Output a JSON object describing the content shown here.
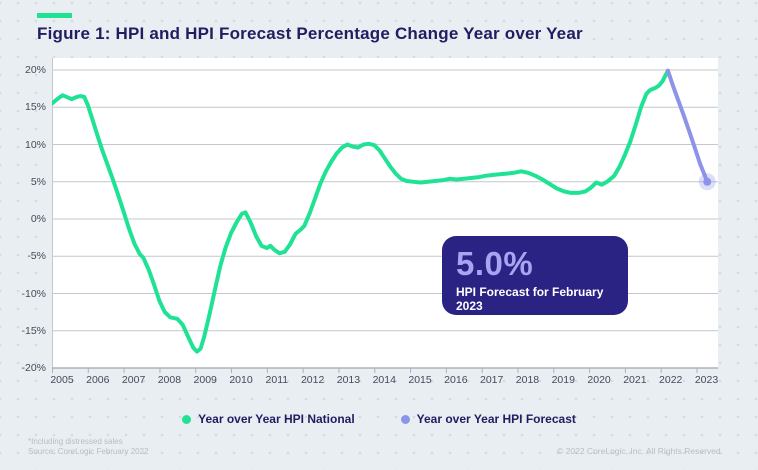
{
  "header": {
    "title": "Figure 1: HPI and HPI Forecast Percentage Change Year over Year"
  },
  "callout": {
    "value": "5.0%",
    "label": "HPI Forecast for February 2023"
  },
  "legend": {
    "items": [
      {
        "label": "Year over Year HPI National",
        "color": "#1fe294"
      },
      {
        "label": "Year over Year HPI Forecast",
        "color": "#8d93e9"
      }
    ]
  },
  "footer": {
    "note1": "*Including distressed sales",
    "note2": "Source: CoreLogic February 2022",
    "copyright": "© 2022 CoreLogic, Inc. All Rights Reserved."
  },
  "colors": {
    "background": "#e9eef2",
    "dot_grid": "#d4dade",
    "title_text": "#221c61",
    "plot_bg": "#ffffff",
    "gridline": "#c4c7cb",
    "axis_line": "#aeb2b8",
    "axis_text": "#464a5c",
    "hpi_green": "#1fe294",
    "forecast_purple": "#8d93e9",
    "callout_bg": "#2b2384",
    "callout_value": "#a9a4f2",
    "callout_text": "#ffffff",
    "footer_text": "#b6bdc4"
  },
  "chart_data": {
    "type": "line",
    "title": "Figure 1: HPI and HPI Forecast Percentage Change Year over Year",
    "xlabel": "",
    "ylabel": "",
    "xlim": [
      2005,
      2023.6
    ],
    "ylim": [
      -20,
      20
    ],
    "grid": "horizontal",
    "legend_position": "bottom",
    "y_tick_values": [
      20,
      15,
      10,
      5,
      0,
      -5,
      -10,
      -15,
      -20
    ],
    "y_tick_labels": [
      "20%",
      "15%",
      "10%",
      "5%",
      "0%",
      "-5%",
      "-10%",
      "-15%",
      "-20%"
    ],
    "x_tick_labels": [
      "2005",
      "2006",
      "2007",
      "2008",
      "2009",
      "2010",
      "2011",
      "2012",
      "2013",
      "2014",
      "2015",
      "2016",
      "2017",
      "2018",
      "2019",
      "2020",
      "2021",
      "2022",
      "2023"
    ],
    "annotation": {
      "value": "5.0%",
      "label": "HPI Forecast for February 2023"
    },
    "series": [
      {
        "name": "Year over Year HPI National",
        "color": "#1fe294",
        "points": [
          [
            2005.0,
            15.5
          ],
          [
            2005.1,
            15.9
          ],
          [
            2005.2,
            16.3
          ],
          [
            2005.3,
            16.6
          ],
          [
            2005.4,
            16.4
          ],
          [
            2005.55,
            16.1
          ],
          [
            2005.7,
            16.4
          ],
          [
            2005.8,
            16.5
          ],
          [
            2005.9,
            16.4
          ],
          [
            2006.0,
            15.3
          ],
          [
            2006.1,
            13.8
          ],
          [
            2006.25,
            11.5
          ],
          [
            2006.4,
            9.3
          ],
          [
            2006.55,
            7.3
          ],
          [
            2006.7,
            5.3
          ],
          [
            2006.85,
            3.2
          ],
          [
            2007.0,
            1.0
          ],
          [
            2007.15,
            -1.3
          ],
          [
            2007.3,
            -3.3
          ],
          [
            2007.45,
            -4.7
          ],
          [
            2007.55,
            -5.2
          ],
          [
            2007.7,
            -6.8
          ],
          [
            2007.85,
            -8.8
          ],
          [
            2008.0,
            -11.0
          ],
          [
            2008.15,
            -12.5
          ],
          [
            2008.3,
            -13.2
          ],
          [
            2008.5,
            -13.4
          ],
          [
            2008.65,
            -14.2
          ],
          [
            2008.8,
            -15.8
          ],
          [
            2008.95,
            -17.3
          ],
          [
            2009.05,
            -17.8
          ],
          [
            2009.15,
            -17.4
          ],
          [
            2009.25,
            -15.8
          ],
          [
            2009.4,
            -12.8
          ],
          [
            2009.55,
            -9.5
          ],
          [
            2009.7,
            -6.3
          ],
          [
            2009.85,
            -3.8
          ],
          [
            2010.0,
            -1.9
          ],
          [
            2010.15,
            -0.5
          ],
          [
            2010.3,
            0.7
          ],
          [
            2010.4,
            0.9
          ],
          [
            2010.55,
            -0.5
          ],
          [
            2010.7,
            -2.3
          ],
          [
            2010.85,
            -3.6
          ],
          [
            2011.0,
            -3.9
          ],
          [
            2011.1,
            -3.6
          ],
          [
            2011.2,
            -4.1
          ],
          [
            2011.35,
            -4.6
          ],
          [
            2011.5,
            -4.4
          ],
          [
            2011.65,
            -3.4
          ],
          [
            2011.8,
            -2.0
          ],
          [
            2011.95,
            -1.4
          ],
          [
            2012.05,
            -0.9
          ],
          [
            2012.2,
            0.8
          ],
          [
            2012.35,
            2.8
          ],
          [
            2012.5,
            4.8
          ],
          [
            2012.65,
            6.4
          ],
          [
            2012.8,
            7.7
          ],
          [
            2012.95,
            8.8
          ],
          [
            2013.1,
            9.6
          ],
          [
            2013.25,
            10.0
          ],
          [
            2013.4,
            9.7
          ],
          [
            2013.55,
            9.6
          ],
          [
            2013.7,
            10.0
          ],
          [
            2013.85,
            10.1
          ],
          [
            2014.0,
            9.9
          ],
          [
            2014.15,
            9.2
          ],
          [
            2014.3,
            8.1
          ],
          [
            2014.45,
            7.0
          ],
          [
            2014.6,
            6.1
          ],
          [
            2014.75,
            5.4
          ],
          [
            2014.9,
            5.1
          ],
          [
            2015.1,
            5.0
          ],
          [
            2015.3,
            4.9
          ],
          [
            2015.5,
            5.0
          ],
          [
            2015.7,
            5.1
          ],
          [
            2015.9,
            5.2
          ],
          [
            2016.1,
            5.4
          ],
          [
            2016.3,
            5.3
          ],
          [
            2016.5,
            5.4
          ],
          [
            2016.7,
            5.5
          ],
          [
            2016.9,
            5.6
          ],
          [
            2017.1,
            5.8
          ],
          [
            2017.3,
            5.9
          ],
          [
            2017.5,
            6.0
          ],
          [
            2017.7,
            6.1
          ],
          [
            2017.9,
            6.2
          ],
          [
            2018.1,
            6.4
          ],
          [
            2018.3,
            6.2
          ],
          [
            2018.5,
            5.8
          ],
          [
            2018.7,
            5.3
          ],
          [
            2018.9,
            4.7
          ],
          [
            2019.1,
            4.1
          ],
          [
            2019.3,
            3.7
          ],
          [
            2019.5,
            3.5
          ],
          [
            2019.7,
            3.5
          ],
          [
            2019.9,
            3.7
          ],
          [
            2020.05,
            4.2
          ],
          [
            2020.2,
            4.9
          ],
          [
            2020.35,
            4.6
          ],
          [
            2020.5,
            5.0
          ],
          [
            2020.7,
            5.8
          ],
          [
            2020.85,
            7.0
          ],
          [
            2021.0,
            8.6
          ],
          [
            2021.15,
            10.4
          ],
          [
            2021.3,
            12.6
          ],
          [
            2021.45,
            15.0
          ],
          [
            2021.6,
            16.8
          ],
          [
            2021.7,
            17.3
          ],
          [
            2021.85,
            17.6
          ],
          [
            2021.95,
            17.9
          ],
          [
            2022.05,
            18.5
          ],
          [
            2022.2,
            19.9
          ]
        ]
      },
      {
        "name": "Year over Year HPI Forecast",
        "color": "#8d93e9",
        "endpoint_marker": true,
        "points": [
          [
            2022.2,
            19.9
          ],
          [
            2022.35,
            17.8
          ],
          [
            2022.5,
            15.8
          ],
          [
            2022.65,
            13.8
          ],
          [
            2022.8,
            11.7
          ],
          [
            2022.95,
            9.6
          ],
          [
            2023.1,
            7.4
          ],
          [
            2023.3,
            5.0
          ]
        ]
      }
    ]
  }
}
